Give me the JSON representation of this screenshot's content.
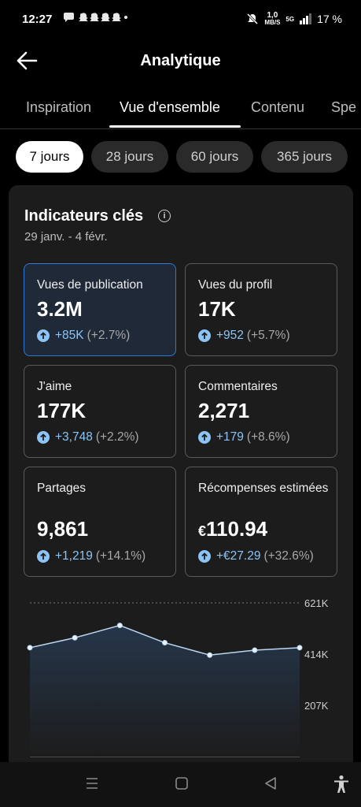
{
  "status": {
    "time": "12:27",
    "speed_top": "1,0",
    "speed_bottom": "MB/S",
    "network": "5G",
    "battery": "17 %",
    "notification_icons": [
      "chat-icon",
      "snapchat-icon",
      "snapchat-icon",
      "snapchat-icon",
      "snapchat-icon",
      "dot-icon"
    ]
  },
  "header": {
    "title": "Analytique"
  },
  "tabs": [
    "Inspiration",
    "Vue d'ensemble",
    "Contenu",
    "Spe"
  ],
  "active_tab": 1,
  "ranges": [
    "7 jours",
    "28 jours",
    "60 jours",
    "365 jours"
  ],
  "active_range": 0,
  "card": {
    "title": "Indicateurs clés",
    "period": "29 janv. - 4 févr.",
    "metrics": [
      {
        "label": "Vues de publication",
        "value": "3.2M",
        "change": "+85K",
        "pct": "(+2.7%)"
      },
      {
        "label": "Vues du profil",
        "value": "17K",
        "change": "+952",
        "pct": "(+5.7%)"
      },
      {
        "label": "J'aime",
        "value": "177K",
        "change": "+3,748",
        "pct": "(+2.2%)"
      },
      {
        "label": "Commentaires",
        "value": "2,271",
        "change": "+179",
        "pct": "(+8.6%)"
      },
      {
        "label": "Partages",
        "value": "9,861",
        "change": "+1,219",
        "pct": "(+14.1%)"
      },
      {
        "label": "Récompenses estimées",
        "value_currency": "€",
        "value": "110.94",
        "change": "+€27.29",
        "pct": "(+32.6%)"
      }
    ]
  },
  "chart_data": {
    "type": "area",
    "y_ticks": [
      "621K",
      "414K",
      "207K"
    ],
    "y_tick_values": [
      621000,
      414000,
      207000
    ],
    "ylim": [
      0,
      621000
    ],
    "values": [
      440000,
      480000,
      530000,
      460000,
      410000,
      430000,
      440000
    ],
    "grid": true,
    "colors": {
      "line": "#b9d6f2",
      "fill_top": "#26364a",
      "fill_bottom": "#1c1c1c"
    }
  },
  "colors": {
    "accent": "#8ec3f5",
    "active_border": "#2f7bd4",
    "card_bg": "#1c1c1c"
  },
  "navbar": {
    "icons": [
      "recent-apps-icon",
      "home-icon",
      "back-nav-icon",
      "accessibility-icon"
    ]
  }
}
